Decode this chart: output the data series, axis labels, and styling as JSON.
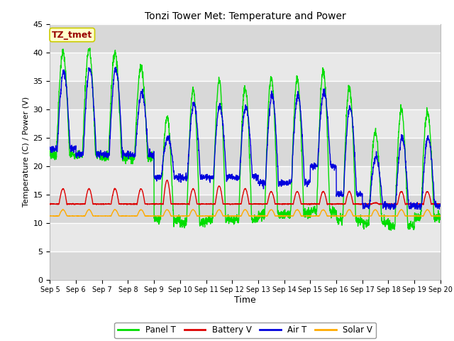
{
  "title": "Tonzi Tower Met: Temperature and Power",
  "xlabel": "Time",
  "ylabel": "Temperature (C) / Power (V)",
  "ylim": [
    0,
    45
  ],
  "yticks": [
    0,
    5,
    10,
    15,
    20,
    25,
    30,
    35,
    40,
    45
  ],
  "annotation_text": "TZ_tmet",
  "annotation_bg": "#ffffcc",
  "annotation_border": "#cccc00",
  "annotation_text_color": "#990000",
  "num_days": 15,
  "colors": {
    "panel_t": "#00dd00",
    "battery_v": "#dd0000",
    "air_t": "#0000dd",
    "solar_v": "#ffaa00"
  },
  "legend_labels": [
    "Panel T",
    "Battery V",
    "Air T",
    "Solar V"
  ],
  "fig_bg_color": "#ffffff",
  "plot_bg_light": "#e8e8e8",
  "plot_bg_dark": "#d8d8d8",
  "grid_color": "#ffffff"
}
